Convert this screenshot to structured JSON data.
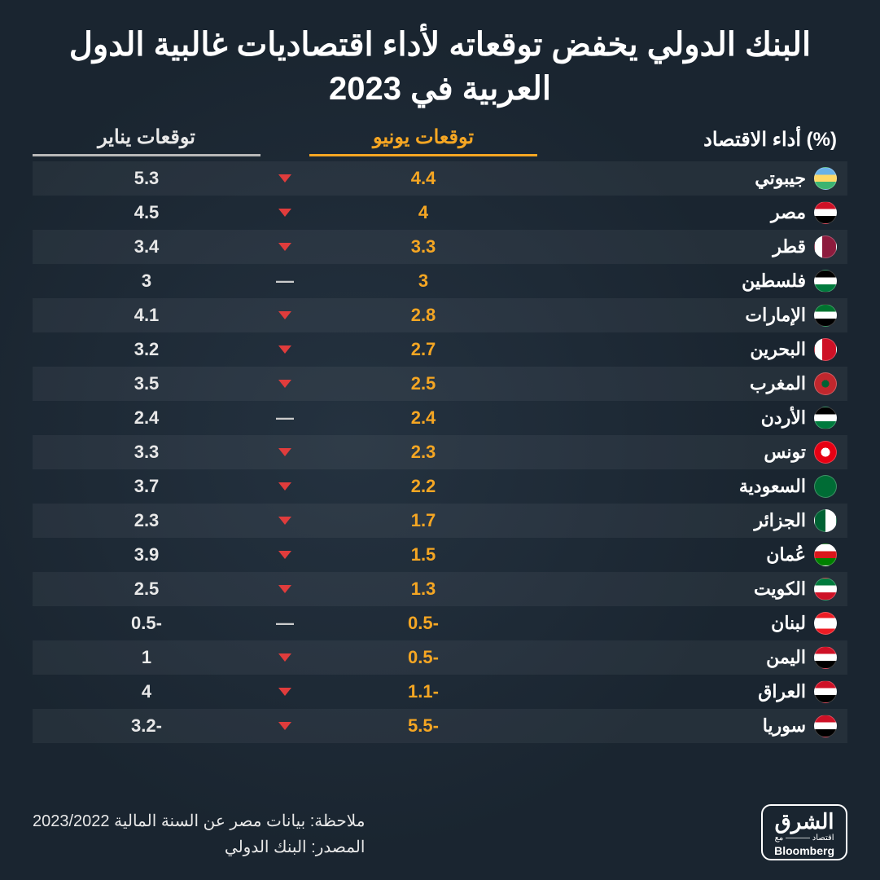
{
  "title": "البنك الدولي يخفض توقعاته لأداء اقتصاديات غالبية الدول العربية في 2023",
  "headers": {
    "country": "أداء الاقتصاد (%)",
    "june": "توقعات يونيو",
    "jan": "توقعات يناير"
  },
  "colors": {
    "background": "#1a2530",
    "title": "#ffffff",
    "june": "#f5a623",
    "jan": "#e8e8e8",
    "arrow_down": "#e03c3c",
    "row_alt": "rgba(255,255,255,0.05)"
  },
  "typography": {
    "title_fontsize": 40,
    "header_fontsize": 24,
    "cell_fontsize": 22,
    "note_fontsize": 20
  },
  "rows": [
    {
      "country": "جيبوتي",
      "june": "4.4",
      "jan": "5.3",
      "dir": "down",
      "flag": "linear-gradient(180deg,#6ab2e7 33%,#ffd966 33%,#ffd966 66%,#3cb371 66%)"
    },
    {
      "country": "مصر",
      "june": "4",
      "jan": "4.5",
      "dir": "down",
      "flag": "linear-gradient(180deg,#ce1126 33%,#fff 33%,#fff 66%,#000 66%)"
    },
    {
      "country": "قطر",
      "june": "3.3",
      "jan": "3.4",
      "dir": "down",
      "flag": "linear-gradient(90deg,#fff 35%,#8d1b3d 35%)"
    },
    {
      "country": "فلسطين",
      "june": "3",
      "jan": "3",
      "dir": "same",
      "flag": "linear-gradient(180deg,#000 33%,#fff 33%,#fff 66%,#007a3d 66%)"
    },
    {
      "country": "الإمارات",
      "june": "2.8",
      "jan": "4.1",
      "dir": "down",
      "flag": "linear-gradient(180deg,#00732f 33%,#fff 33%,#fff 66%,#000 66%)"
    },
    {
      "country": "البحرين",
      "june": "2.7",
      "jan": "3.2",
      "dir": "down",
      "flag": "linear-gradient(90deg,#fff 35%,#ce1126 35%)"
    },
    {
      "country": "المغرب",
      "june": "2.5",
      "jan": "3.5",
      "dir": "down",
      "flag": "radial-gradient(circle at center,#006233 0 25%,#c1272d 25%)"
    },
    {
      "country": "الأردن",
      "june": "2.4",
      "jan": "2.4",
      "dir": "same",
      "flag": "linear-gradient(180deg,#000 33%,#fff 33%,#fff 66%,#007a3d 66%)"
    },
    {
      "country": "تونس",
      "june": "2.3",
      "jan": "3.3",
      "dir": "down",
      "flag": "radial-gradient(circle at center,#fff 0 30%,#e70013 30%)"
    },
    {
      "country": "السعودية",
      "june": "2.2",
      "jan": "3.7",
      "dir": "down",
      "flag": "#006c35"
    },
    {
      "country": "الجزائر",
      "june": "1.7",
      "jan": "2.3",
      "dir": "down",
      "flag": "linear-gradient(90deg,#006233 50%,#fff 50%)"
    },
    {
      "country": "عُمان",
      "june": "1.5",
      "jan": "3.9",
      "dir": "down",
      "flag": "linear-gradient(180deg,#fff 33%,#db161b 33%,#db161b 66%,#008000 66%)"
    },
    {
      "country": "الكويت",
      "june": "1.3",
      "jan": "2.5",
      "dir": "down",
      "flag": "linear-gradient(180deg,#007a3d 33%,#fff 33%,#fff 66%,#ce1126 66%)"
    },
    {
      "country": "لبنان",
      "june": "0.5-",
      "jan": "0.5-",
      "dir": "same",
      "flag": "linear-gradient(180deg,#ed1c24 25%,#fff 25%,#fff 75%,#ed1c24 75%)"
    },
    {
      "country": "اليمن",
      "june": "0.5-",
      "jan": "1",
      "dir": "down",
      "flag": "linear-gradient(180deg,#ce1126 33%,#fff 33%,#fff 66%,#000 66%)"
    },
    {
      "country": "العراق",
      "june": "1.1-",
      "jan": "4",
      "dir": "down",
      "flag": "linear-gradient(180deg,#ce1126 33%,#fff 33%,#fff 66%,#000 66%)"
    },
    {
      "country": "سوريا",
      "june": "5.5-",
      "jan": "3.2-",
      "dir": "down",
      "flag": "linear-gradient(180deg,#ce1126 33%,#fff 33%,#fff 66%,#000 66%)"
    }
  ],
  "note": "ملاحظة: بيانات مصر عن السنة المالية 2023/2022",
  "source": "المصدر: البنك الدولي",
  "logo": {
    "ar": "الشرق",
    "sub": "اقتصاد ——— مع",
    "bl": "Bloomberg"
  }
}
